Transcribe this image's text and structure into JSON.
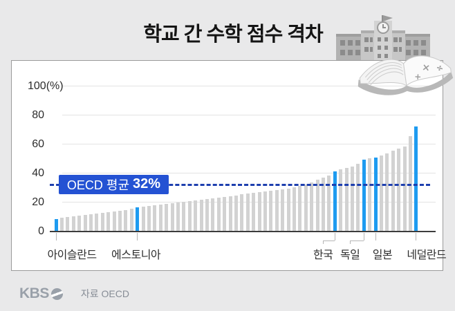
{
  "title": "학교 간 수학 점수 격차",
  "footer": {
    "logo": "KBS",
    "source": "자료 OECD"
  },
  "chart_data": {
    "type": "bar",
    "title": "학교 간 수학 점수 격차",
    "ylabel": "%",
    "ylim": [
      0,
      100
    ],
    "grid": true,
    "yticks": [
      {
        "value": 0,
        "label": "0"
      },
      {
        "value": 20,
        "label": "20"
      },
      {
        "value": 40,
        "label": "40"
      },
      {
        "value": 60,
        "label": "60"
      },
      {
        "value": 80,
        "label": "80"
      },
      {
        "value": 100,
        "label": "100(%)"
      }
    ],
    "average_line": {
      "label": "OECD 평균",
      "value_text": "32%",
      "value": 32
    },
    "values": [
      8,
      9,
      9.5,
      10,
      10.5,
      11,
      11.5,
      12,
      12.5,
      13,
      13.5,
      14,
      14.5,
      15,
      16,
      16.5,
      17,
      17.5,
      18,
      18.5,
      19,
      19.5,
      20,
      20.5,
      21,
      21.5,
      22,
      22.5,
      23,
      23.5,
      24,
      24.5,
      25,
      25.5,
      26,
      26.5,
      27,
      27.5,
      28,
      28.5,
      29,
      30,
      31,
      32,
      33.5,
      35,
      36.5,
      38,
      41,
      42.5,
      43.5,
      44.5,
      46,
      49,
      50,
      50.5,
      52,
      53.5,
      55,
      56.5,
      58,
      65,
      72
    ],
    "highlights": [
      {
        "index": 0,
        "label": "아이슬란드",
        "value": 8
      },
      {
        "index": 14,
        "label": "에스토니아",
        "value": 16
      },
      {
        "index": 48,
        "label": "한국",
        "value": 41
      },
      {
        "index": 53,
        "label": "독일",
        "value": 49
      },
      {
        "index": 55,
        "label": "일본",
        "value": 50.5
      },
      {
        "index": 62,
        "label": "네덜란드",
        "value": 72
      }
    ],
    "colors": {
      "bar": "#d2d2d2",
      "highlight": "#1e9bf0",
      "avg_box": "#2452d3",
      "avg_line": "#1d3fae"
    }
  }
}
